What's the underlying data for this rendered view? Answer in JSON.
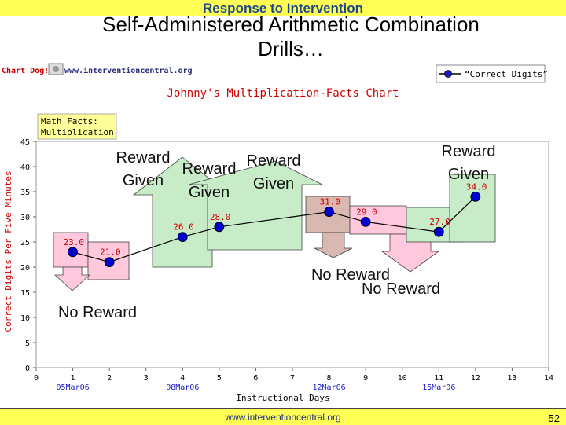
{
  "slide": {
    "banner": "Response to Intervention",
    "title_line1": "Self-Administered Arithmetic Combination",
    "title_line2": "Drills…",
    "footer_url": "www.interventioncentral.org",
    "page_number": "52"
  },
  "chart_header": {
    "brand": "Chart Dog!",
    "url": "www.interventioncentral.org",
    "legend_label": "“Correct Digits”"
  },
  "chart_data": {
    "type": "line",
    "title": "Johnny's Multiplication-Facts Chart",
    "subtitle_line1": "Math Facts:",
    "subtitle_line2": "Multiplication",
    "xlabel": "Instructional Days",
    "ylabel": "Correct Digits Per Five Minutes",
    "xlim": [
      0,
      14
    ],
    "ylim": [
      0,
      45
    ],
    "x_ticks": [
      0,
      1,
      2,
      3,
      4,
      5,
      6,
      7,
      8,
      9,
      10,
      11,
      12,
      13,
      14
    ],
    "y_ticks": [
      0,
      5,
      10,
      15,
      20,
      25,
      30,
      35,
      40,
      45
    ],
    "date_labels": [
      {
        "x": 1,
        "label": "05Mar06"
      },
      {
        "x": 4,
        "label": "08Mar06"
      },
      {
        "x": 8,
        "label": "12Mar06"
      },
      {
        "x": 11,
        "label": "15Mar06"
      }
    ],
    "series": [
      {
        "name": "“Correct Digits”",
        "color": "#0000cc",
        "x": [
          1,
          2,
          4,
          5,
          8,
          9,
          11,
          12
        ],
        "y": [
          23,
          21,
          26,
          28,
          31,
          29,
          27,
          34
        ],
        "labels": [
          "23.0",
          "21.0",
          "26.0",
          "28.0",
          "31.0",
          "29.0",
          "27.0",
          "34.0"
        ]
      }
    ],
    "grid": false,
    "legend_position": "top-right",
    "annotations": {
      "reward_given": "Reward Given",
      "reward_word": "Reward",
      "given_word": "Given",
      "no_reward": "No Reward"
    },
    "colors": {
      "reward_fill": "#c8ecc8",
      "no_reward_fill": "#ffc8dc",
      "brown_fill": "#d8b8b0",
      "marker": "#1a1acc"
    }
  }
}
